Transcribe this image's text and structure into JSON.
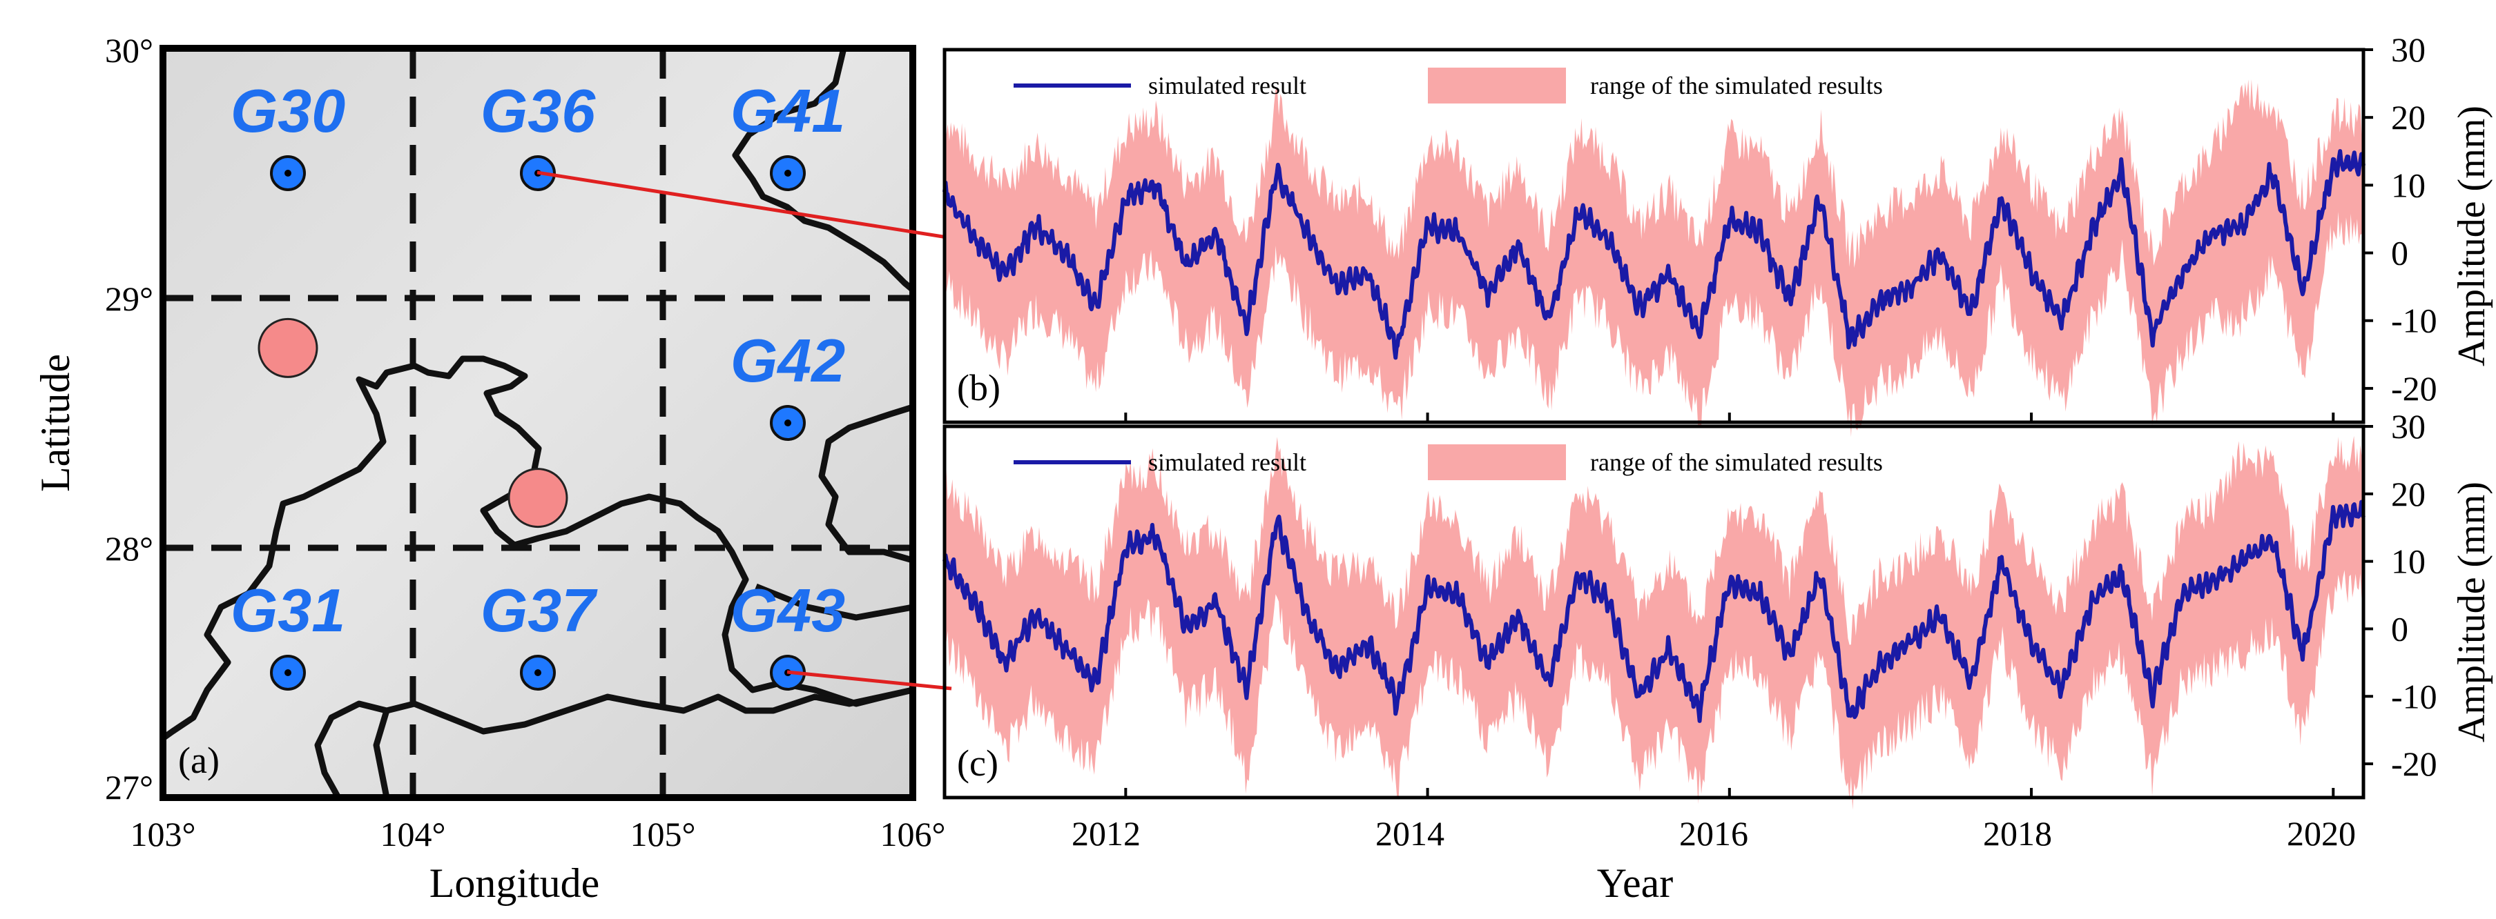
{
  "colors": {
    "line": "#1a1aa6",
    "band": "#f9a8a8",
    "grid_marker": "#1e78ff",
    "station_label": "#1e6ff0",
    "red_circle": "#f58a8a",
    "connector": "#e02020"
  },
  "map": {
    "panel_label": "(a)",
    "xlabel": "Longitude",
    "ylabel": "Latitude",
    "x_ticks": [
      "103°",
      "104°",
      "105°",
      "106°"
    ],
    "y_ticks": [
      "30°",
      "29°",
      "28°",
      "27°"
    ],
    "stations": [
      {
        "name": "G30",
        "lon": 103.5,
        "lat": 29.5
      },
      {
        "name": "G36",
        "lon": 104.5,
        "lat": 29.5
      },
      {
        "name": "G41",
        "lon": 105.5,
        "lat": 29.5
      },
      {
        "name": "G42",
        "lon": 105.5,
        "lat": 28.5
      },
      {
        "name": "G31",
        "lon": 103.5,
        "lat": 27.5
      },
      {
        "name": "G37",
        "lon": 104.5,
        "lat": 27.5
      },
      {
        "name": "G43",
        "lon": 105.5,
        "lat": 27.5
      }
    ],
    "red_sites": [
      {
        "lon": 103.5,
        "lat": 28.8
      },
      {
        "lon": 104.5,
        "lat": 28.2
      }
    ]
  },
  "chart_data": [
    {
      "type": "line",
      "panel_label": "(b)",
      "xlabel": "Year",
      "ylabel": "Amplitude (mm)",
      "x_ticks": [
        "2012",
        "2014",
        "2016",
        "2018",
        "2020"
      ],
      "y_ticks": [
        "30",
        "20",
        "10",
        "0",
        "-10",
        "-20"
      ],
      "xlim": [
        2010.8,
        2020.2
      ],
      "ylim": [
        -25,
        30
      ],
      "legend": {
        "line": "simulated result",
        "band": "range of the simulated results"
      },
      "series": [
        {
          "name": "simulated result",
          "x": [
            2010.8,
            2011.0,
            2011.2,
            2011.4,
            2011.6,
            2011.8,
            2012.0,
            2012.2,
            2012.4,
            2012.6,
            2012.8,
            2013.0,
            2013.2,
            2013.4,
            2013.6,
            2013.8,
            2014.0,
            2014.2,
            2014.4,
            2014.6,
            2014.8,
            2015.0,
            2015.2,
            2015.4,
            2015.6,
            2015.8,
            2016.0,
            2016.2,
            2016.4,
            2016.6,
            2016.8,
            2017.0,
            2017.2,
            2017.4,
            2017.6,
            2017.8,
            2018.0,
            2018.2,
            2018.4,
            2018.6,
            2018.8,
            2019.0,
            2019.2,
            2019.4,
            2019.6,
            2019.8,
            2020.0
          ],
          "y": [
            9,
            2,
            -3,
            4,
            0,
            -8,
            8,
            10,
            -2,
            3,
            -11,
            12,
            3,
            -5,
            -3,
            -14,
            4,
            3,
            -6,
            1,
            -10,
            6,
            2,
            -8,
            -3,
            -12,
            5,
            3,
            -7,
            8,
            -13,
            -7,
            -5,
            0,
            -9,
            8,
            -3,
            -10,
            3,
            12,
            -12,
            -3,
            3,
            4,
            12,
            -6,
            13
          ]
        },
        {
          "name": "range upper",
          "x": [
            2010.8,
            2011.0,
            2011.2,
            2011.4,
            2011.6,
            2011.8,
            2012.0,
            2012.2,
            2012.4,
            2012.6,
            2012.8,
            2013.0,
            2013.2,
            2013.4,
            2013.6,
            2013.8,
            2014.0,
            2014.2,
            2014.4,
            2014.6,
            2014.8,
            2015.0,
            2015.2,
            2015.4,
            2015.6,
            2015.8,
            2016.0,
            2016.2,
            2016.4,
            2016.6,
            2016.8,
            2017.0,
            2017.2,
            2017.4,
            2017.6,
            2017.8,
            2018.0,
            2018.2,
            2018.4,
            2018.6,
            2018.8,
            2019.0,
            2019.2,
            2019.4,
            2019.6,
            2019.8,
            2020.0
          ],
          "y": [
            20,
            14,
            10,
            16,
            12,
            6,
            18,
            20,
            10,
            14,
            2,
            22,
            14,
            7,
            9,
            -1,
            16,
            15,
            6,
            13,
            2,
            18,
            14,
            4,
            9,
            1,
            17,
            15,
            5,
            19,
            0,
            6,
            8,
            12,
            4,
            18,
            10,
            3,
            14,
            20,
            0,
            10,
            15,
            24,
            22,
            8,
            20
          ]
        },
        {
          "name": "range lower",
          "x": [
            2010.8,
            2011.0,
            2011.2,
            2011.4,
            2011.6,
            2011.8,
            2012.0,
            2012.2,
            2012.4,
            2012.6,
            2012.8,
            2013.0,
            2013.2,
            2013.4,
            2013.6,
            2013.8,
            2014.0,
            2014.2,
            2014.4,
            2014.6,
            2014.8,
            2015.0,
            2015.2,
            2015.4,
            2015.6,
            2015.8,
            2016.0,
            2016.2,
            2016.4,
            2016.6,
            2016.8,
            2017.0,
            2017.2,
            2017.4,
            2017.6,
            2017.8,
            2018.0,
            2018.2,
            2018.4,
            2018.6,
            2018.8,
            2019.0,
            2019.2,
            2019.4,
            2019.6,
            2019.8,
            2020.0
          ],
          "y": [
            -4,
            -10,
            -16,
            -8,
            -12,
            -20,
            -4,
            -2,
            -14,
            -10,
            -22,
            0,
            -10,
            -18,
            -16,
            -24,
            -8,
            -9,
            -18,
            -11,
            -22,
            -6,
            -10,
            -20,
            -15,
            -24,
            -7,
            -9,
            -19,
            -4,
            -25,
            -19,
            -17,
            -12,
            -21,
            -4,
            -15,
            -22,
            -10,
            0,
            -24,
            -15,
            -9,
            -10,
            -2,
            -18,
            4
          ]
        }
      ]
    },
    {
      "type": "line",
      "panel_label": "(c)",
      "xlabel": "Year",
      "ylabel": "Amplitude (mm)",
      "x_ticks": [
        "2012",
        "2014",
        "2016",
        "2018",
        "2020"
      ],
      "y_ticks": [
        "30",
        "20",
        "10",
        "0",
        "-10",
        "-20"
      ],
      "xlim": [
        2010.8,
        2020.2
      ],
      "ylim": [
        -25,
        30
      ],
      "legend": {
        "line": "simulated result",
        "band": "range of the simulated results"
      },
      "series": [
        {
          "name": "simulated result",
          "x": [
            2010.8,
            2011.0,
            2011.2,
            2011.4,
            2011.6,
            2011.8,
            2012.0,
            2012.2,
            2012.4,
            2012.6,
            2012.8,
            2013.0,
            2013.2,
            2013.4,
            2013.6,
            2013.8,
            2014.0,
            2014.2,
            2014.4,
            2014.6,
            2014.8,
            2015.0,
            2015.2,
            2015.4,
            2015.6,
            2015.8,
            2016.0,
            2016.2,
            2016.4,
            2016.6,
            2016.8,
            2017.0,
            2017.2,
            2017.4,
            2017.6,
            2017.8,
            2018.0,
            2018.2,
            2018.4,
            2018.6,
            2018.8,
            2019.0,
            2019.2,
            2019.4,
            2019.6,
            2019.8,
            2020.0
          ],
          "y": [
            10,
            4,
            -5,
            2,
            -3,
            -8,
            12,
            14,
            0,
            4,
            -9,
            16,
            2,
            -6,
            -2,
            -11,
            6,
            5,
            -5,
            2,
            -8,
            8,
            4,
            -10,
            -3,
            -12,
            7,
            5,
            -4,
            8,
            -13,
            -5,
            -2,
            2,
            -8,
            10,
            -2,
            -9,
            4,
            8,
            -10,
            5,
            7,
            10,
            13,
            -4,
            17
          ]
        },
        {
          "name": "range upper",
          "x": [
            2010.8,
            2011.0,
            2011.2,
            2011.4,
            2011.6,
            2011.8,
            2012.0,
            2012.2,
            2012.4,
            2012.6,
            2012.8,
            2013.0,
            2013.2,
            2013.4,
            2013.6,
            2013.8,
            2014.0,
            2014.2,
            2014.4,
            2014.6,
            2014.8,
            2015.0,
            2015.2,
            2015.4,
            2015.6,
            2015.8,
            2016.0,
            2016.2,
            2016.4,
            2016.6,
            2016.8,
            2017.0,
            2017.2,
            2017.4,
            2017.6,
            2017.8,
            2018.0,
            2018.2,
            2018.4,
            2018.6,
            2018.8,
            2019.0,
            2019.2,
            2019.4,
            2019.6,
            2019.8,
            2020.0
          ],
          "y": [
            22,
            16,
            8,
            14,
            10,
            6,
            22,
            24,
            12,
            15,
            4,
            26,
            14,
            8,
            10,
            2,
            18,
            16,
            6,
            14,
            4,
            20,
            16,
            3,
            10,
            1,
            18,
            16,
            7,
            20,
            0,
            8,
            10,
            14,
            6,
            20,
            10,
            3,
            15,
            20,
            2,
            16,
            18,
            26,
            24,
            8,
            26
          ]
        },
        {
          "name": "range lower",
          "x": [
            2010.8,
            2011.0,
            2011.2,
            2011.4,
            2011.6,
            2011.8,
            2012.0,
            2012.2,
            2012.4,
            2012.6,
            2012.8,
            2013.0,
            2013.2,
            2013.4,
            2013.6,
            2013.8,
            2014.0,
            2014.2,
            2014.4,
            2014.6,
            2014.8,
            2015.0,
            2015.2,
            2015.4,
            2015.6,
            2015.8,
            2016.0,
            2016.2,
            2016.4,
            2016.6,
            2016.8,
            2017.0,
            2017.2,
            2017.4,
            2017.6,
            2017.8,
            2018.0,
            2018.2,
            2018.4,
            2018.6,
            2018.8,
            2019.0,
            2019.2,
            2019.4,
            2019.6,
            2019.8,
            2020.0
          ],
          "y": [
            -2,
            -8,
            -18,
            -10,
            -16,
            -20,
            0,
            2,
            -12,
            -8,
            -22,
            4,
            -10,
            -18,
            -14,
            -23,
            -6,
            -7,
            -17,
            -10,
            -20,
            -4,
            -8,
            -22,
            -15,
            -24,
            -5,
            -7,
            -16,
            -4,
            -25,
            -17,
            -14,
            -10,
            -20,
            -2,
            -14,
            -21,
            -8,
            -4,
            -22,
            -8,
            -6,
            -4,
            0,
            -16,
            6
          ]
        }
      ]
    }
  ]
}
